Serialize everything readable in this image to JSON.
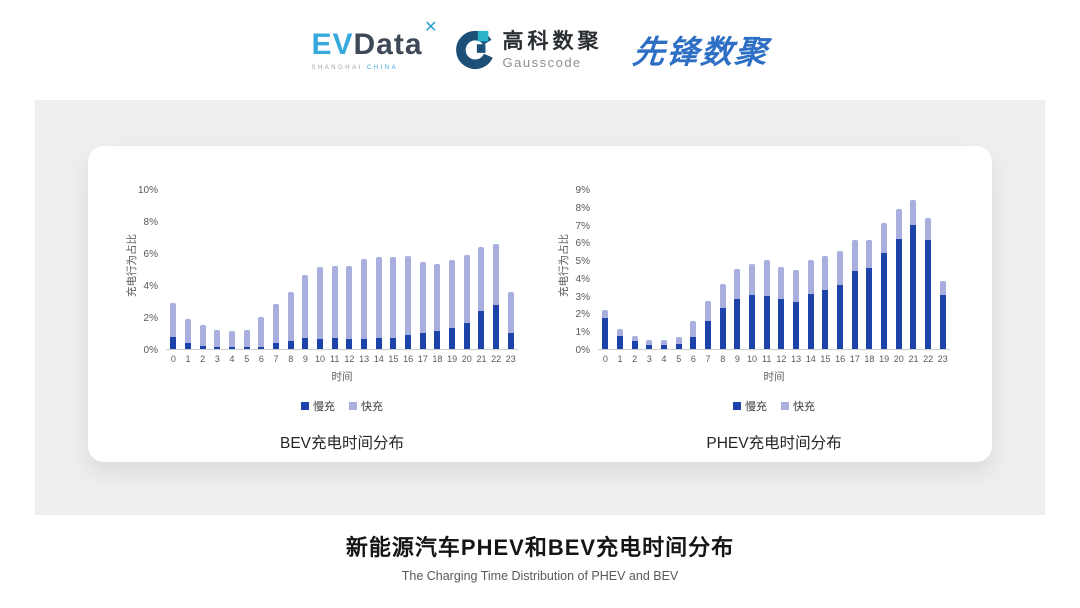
{
  "header": {
    "evdata": {
      "ev": "EV",
      "data": "Data",
      "sub_left": "SHANGHAI",
      "sub_right": "CHINA",
      "star_icon": "four-point-star"
    },
    "gausscode": {
      "cn": "高科数聚",
      "en": "Gausscode",
      "icon": "g-mark-icon"
    },
    "xianfeng": {
      "text": "先锋数聚"
    }
  },
  "footer": {
    "title": "新能源汽车PHEV和BEV充电时间分布",
    "subtitle": "The Charging Time Distribution of PHEV and BEV"
  },
  "colors": {
    "slow_charge": "#1c44a8",
    "fast_charge": "#a8aede",
    "evdata_blue": "#35a8dc",
    "evdata_dark": "#3d4956",
    "gausscode_teal": "#29b2c8",
    "gausscode_navy": "#1d5078",
    "xianfeng_blue": "#2d6fc4",
    "panel_gray": "#efefef"
  },
  "chart_data": [
    {
      "type": "bar",
      "stacked": true,
      "title": "BEV充电时间分布",
      "xlabel": "时间",
      "ylabel": "充电行为占比",
      "ylim": [
        0,
        10
      ],
      "ytick_step": 2,
      "ytick_suffix": "%",
      "grid": false,
      "legend_position": "bottom",
      "categories": [
        "0",
        "1",
        "2",
        "3",
        "4",
        "5",
        "6",
        "7",
        "8",
        "9",
        "10",
        "11",
        "12",
        "13",
        "14",
        "15",
        "16",
        "17",
        "18",
        "19",
        "20",
        "21",
        "22",
        "23"
      ],
      "series": [
        {
          "name": "慢充",
          "color": "#1c44a8",
          "values": [
            0.75,
            0.35,
            0.2,
            0.1,
            0.1,
            0.1,
            0.15,
            0.35,
            0.5,
            0.7,
            0.65,
            0.7,
            0.6,
            0.6,
            0.7,
            0.7,
            0.85,
            1.0,
            1.1,
            1.3,
            1.6,
            2.4,
            2.75,
            1.0
          ]
        },
        {
          "name": "快充",
          "color": "#a8aede",
          "values": [
            2.15,
            1.55,
            1.3,
            1.1,
            1.0,
            1.1,
            1.85,
            2.45,
            3.05,
            3.9,
            4.5,
            4.5,
            4.6,
            5.0,
            5.05,
            5.05,
            4.95,
            4.45,
            4.2,
            4.25,
            4.3,
            3.95,
            3.8,
            2.55
          ]
        }
      ]
    },
    {
      "type": "bar",
      "stacked": true,
      "title": "PHEV充电时间分布",
      "xlabel": "时间",
      "ylabel": "充电行为占比",
      "ylim": [
        0,
        9
      ],
      "ytick_step": 1,
      "ytick_suffix": "%",
      "grid": false,
      "legend_position": "bottom",
      "categories": [
        "0",
        "1",
        "2",
        "3",
        "4",
        "5",
        "6",
        "7",
        "8",
        "9",
        "10",
        "11",
        "12",
        "13",
        "14",
        "15",
        "16",
        "17",
        "18",
        "19",
        "20",
        "21",
        "22",
        "23"
      ],
      "series": [
        {
          "name": "慢充",
          "color": "#1c44a8",
          "values": [
            1.75,
            0.75,
            0.45,
            0.25,
            0.25,
            0.3,
            0.7,
            1.6,
            2.3,
            2.8,
            3.05,
            3.0,
            2.8,
            2.65,
            3.1,
            3.3,
            3.6,
            4.4,
            4.55,
            5.4,
            6.2,
            7.0,
            6.15,
            3.05
          ]
        },
        {
          "name": "快充",
          "color": "#a8aede",
          "values": [
            0.45,
            0.4,
            0.3,
            0.25,
            0.25,
            0.35,
            0.9,
            1.1,
            1.35,
            1.7,
            1.75,
            2.0,
            1.8,
            1.8,
            1.9,
            1.95,
            1.9,
            1.75,
            1.6,
            1.7,
            1.7,
            1.4,
            1.2,
            0.8
          ]
        }
      ]
    }
  ]
}
